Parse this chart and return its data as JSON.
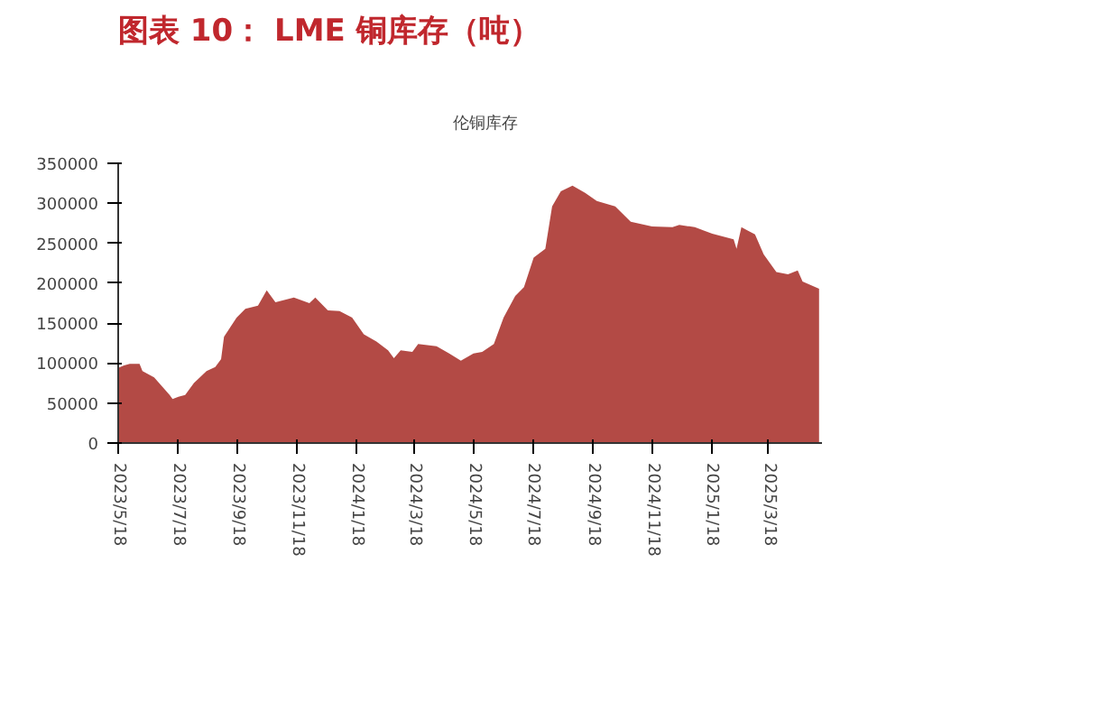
{
  "chart_data": {
    "type": "area",
    "title": "图表 10：  LME 铜库存（吨）",
    "x": [
      "2023-05-18",
      "2023-05-24",
      "2023-05-30",
      "2023-06-09",
      "2023-06-12",
      "2023-06-24",
      "2023-07-10",
      "2023-07-13",
      "2023-07-19",
      "2023-07-26",
      "2023-08-04",
      "2023-08-17",
      "2023-08-26",
      "2023-09-01",
      "2023-09-04",
      "2023-09-17",
      "2023-09-26",
      "2023-10-09",
      "2023-10-18",
      "2023-10-27",
      "2023-11-15",
      "2023-12-01",
      "2023-12-07",
      "2023-12-20",
      "2024-01-01",
      "2024-01-14",
      "2024-01-26",
      "2024-02-08",
      "2024-02-20",
      "2024-02-26",
      "2024-03-04",
      "2024-03-16",
      "2024-03-22",
      "2024-04-10",
      "2024-04-23",
      "2024-05-05",
      "2024-05-18",
      "2024-05-27",
      "2024-06-08",
      "2024-06-18",
      "2024-06-30",
      "2024-07-09",
      "2024-07-19",
      "2024-07-31",
      "2024-08-07",
      "2024-08-16",
      "2024-08-28",
      "2024-09-10",
      "2024-09-22",
      "2024-10-11",
      "2024-10-27",
      "2024-11-18",
      "2024-12-09",
      "2024-12-16",
      "2025-01-01",
      "2025-01-19",
      "2025-02-10",
      "2025-02-13",
      "2025-02-18",
      "2025-03-04",
      "2025-03-13",
      "2025-03-26",
      "2025-04-07",
      "2025-04-17",
      "2025-04-22",
      "2025-05-09"
    ],
    "series": [
      {
        "name": "伦铜库存",
        "color": "#b34a45",
        "values": [
          94000,
          97000,
          99000,
          99000,
          90000,
          82000,
          60000,
          55000,
          58000,
          60000,
          75000,
          90000,
          95000,
          105000,
          133000,
          157000,
          168000,
          172000,
          191000,
          176000,
          182000,
          175000,
          182000,
          166000,
          165000,
          157000,
          136000,
          127000,
          116000,
          106000,
          116000,
          114000,
          124000,
          121000,
          112000,
          103000,
          112000,
          114000,
          124000,
          157000,
          184000,
          195000,
          232000,
          243000,
          296000,
          315000,
          322000,
          313000,
          303000,
          296000,
          277000,
          271000,
          270000,
          273000,
          270000,
          262000,
          255000,
          243000,
          270000,
          261000,
          236000,
          214000,
          211000,
          216000,
          202000,
          193000
        ]
      }
    ],
    "xlim": [
      "2023-05-18",
      "2025-05-12"
    ],
    "xticks": [
      {
        "value": "2023-05-18",
        "label": "2023/5/18"
      },
      {
        "value": "2023-07-18",
        "label": "2023/7/18"
      },
      {
        "value": "2023-09-18",
        "label": "2023/9/18"
      },
      {
        "value": "2023-11-18",
        "label": "2023/11/18"
      },
      {
        "value": "2024-01-18",
        "label": "2024/1/18"
      },
      {
        "value": "2024-03-18",
        "label": "2024/3/18"
      },
      {
        "value": "2024-05-18",
        "label": "2024/5/18"
      },
      {
        "value": "2024-07-18",
        "label": "2024/7/18"
      },
      {
        "value": "2024-09-18",
        "label": "2024/9/18"
      },
      {
        "value": "2024-11-18",
        "label": "2024/11/18"
      },
      {
        "value": "2025-01-18",
        "label": "2025/1/18"
      },
      {
        "value": "2025-03-18",
        "label": "2025/3/18"
      }
    ],
    "ylim": [
      0,
      350000
    ],
    "yticks": [
      0,
      50000,
      100000,
      150000,
      200000,
      250000,
      300000,
      350000
    ],
    "grid": false,
    "legend": "top"
  }
}
